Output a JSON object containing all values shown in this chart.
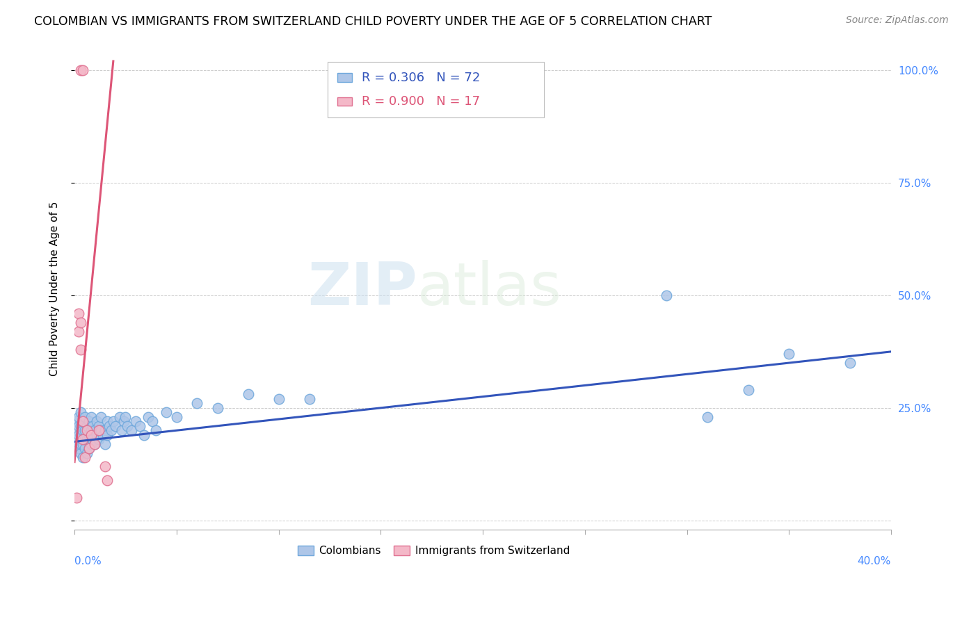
{
  "title": "COLOMBIAN VS IMMIGRANTS FROM SWITZERLAND CHILD POVERTY UNDER THE AGE OF 5 CORRELATION CHART",
  "source": "Source: ZipAtlas.com",
  "ylabel": "Child Poverty Under the Age of 5",
  "xlim": [
    0.0,
    0.4
  ],
  "ylim": [
    -0.02,
    1.05
  ],
  "ytick_vals": [
    0.0,
    0.25,
    0.5,
    0.75,
    1.0
  ],
  "ytick_labels": [
    "",
    "25.0%",
    "50.0%",
    "75.0%",
    "100.0%"
  ],
  "xtick_vals": [
    0.0,
    0.05,
    0.1,
    0.15,
    0.2,
    0.25,
    0.3,
    0.35,
    0.4
  ],
  "blue_color": "#aec6e8",
  "blue_edge_color": "#6fa8dc",
  "pink_color": "#f4b8c8",
  "pink_edge_color": "#e07090",
  "blue_line_color": "#3355bb",
  "pink_line_color": "#dd5577",
  "legend_R_blue": "R = 0.306",
  "legend_N_blue": "N = 72",
  "legend_R_pink": "R = 0.900",
  "legend_N_pink": "N = 17",
  "legend_label_blue": "Colombians",
  "legend_label_pink": "Immigrants from Switzerland",
  "watermark_zip": "ZIP",
  "watermark_atlas": "atlas",
  "title_fontsize": 12.5,
  "source_fontsize": 10,
  "label_fontsize": 11,
  "tick_fontsize": 11,
  "legend_fontsize": 13,
  "blue_line_x": [
    0.0,
    0.4
  ],
  "blue_line_y": [
    0.175,
    0.375
  ],
  "pink_line_x": [
    0.0,
    0.019
  ],
  "pink_line_y": [
    0.13,
    1.02
  ],
  "blue_points_x": [
    0.001,
    0.001,
    0.001,
    0.002,
    0.002,
    0.002,
    0.002,
    0.003,
    0.003,
    0.003,
    0.003,
    0.003,
    0.004,
    0.004,
    0.004,
    0.004,
    0.005,
    0.005,
    0.005,
    0.005,
    0.006,
    0.006,
    0.006,
    0.007,
    0.007,
    0.007,
    0.008,
    0.008,
    0.008,
    0.009,
    0.009,
    0.01,
    0.01,
    0.011,
    0.011,
    0.012,
    0.012,
    0.013,
    0.013,
    0.014,
    0.015,
    0.015,
    0.016,
    0.016,
    0.017,
    0.018,
    0.019,
    0.02,
    0.022,
    0.023,
    0.024,
    0.025,
    0.026,
    0.028,
    0.03,
    0.032,
    0.034,
    0.036,
    0.038,
    0.04,
    0.045,
    0.05,
    0.06,
    0.07,
    0.085,
    0.1,
    0.115,
    0.29,
    0.31,
    0.33,
    0.35,
    0.38
  ],
  "blue_points_y": [
    0.18,
    0.2,
    0.22,
    0.16,
    0.19,
    0.21,
    0.23,
    0.15,
    0.17,
    0.19,
    0.21,
    0.24,
    0.14,
    0.17,
    0.2,
    0.22,
    0.16,
    0.18,
    0.2,
    0.23,
    0.15,
    0.18,
    0.21,
    0.16,
    0.19,
    0.22,
    0.17,
    0.2,
    0.23,
    0.18,
    0.21,
    0.17,
    0.2,
    0.19,
    0.22,
    0.18,
    0.21,
    0.2,
    0.23,
    0.19,
    0.17,
    0.2,
    0.19,
    0.22,
    0.21,
    0.2,
    0.22,
    0.21,
    0.23,
    0.2,
    0.22,
    0.23,
    0.21,
    0.2,
    0.22,
    0.21,
    0.19,
    0.23,
    0.22,
    0.2,
    0.24,
    0.23,
    0.26,
    0.25,
    0.28,
    0.27,
    0.27,
    0.5,
    0.23,
    0.29,
    0.37,
    0.35
  ],
  "pink_points_x": [
    0.001,
    0.002,
    0.002,
    0.003,
    0.003,
    0.004,
    0.004,
    0.005,
    0.006,
    0.007,
    0.008,
    0.01,
    0.012,
    0.003,
    0.004,
    0.015,
    0.016
  ],
  "pink_points_y": [
    0.05,
    0.42,
    0.46,
    0.38,
    0.44,
    0.18,
    0.22,
    0.14,
    0.2,
    0.16,
    0.19,
    0.17,
    0.2,
    1.0,
    1.0,
    0.12,
    0.09
  ]
}
